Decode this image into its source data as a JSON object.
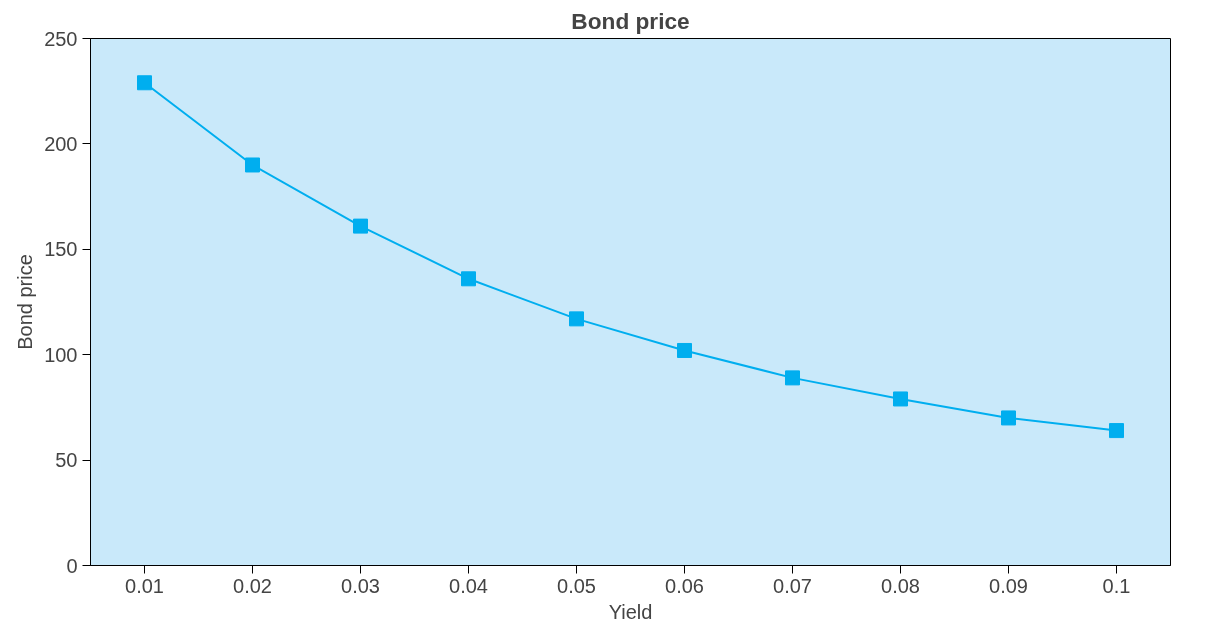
{
  "chart_data": {
    "type": "line",
    "title": "Bond price",
    "xlabel": "Yield",
    "ylabel": "Bond price",
    "categories": [
      "0.01",
      "0.02",
      "0.03",
      "0.04",
      "0.05",
      "0.06",
      "0.07",
      "0.08",
      "0.09",
      "0.1"
    ],
    "series": [
      {
        "color": "#00aeef",
        "values": [
          229,
          190,
          161,
          136,
          117,
          102,
          89,
          79,
          70,
          64
        ]
      }
    ],
    "ylim": [
      0,
      250
    ],
    "yticks": [
      0,
      50,
      100,
      150,
      200,
      250
    ],
    "grid": false,
    "marker": "square",
    "line_style": "solid"
  }
}
